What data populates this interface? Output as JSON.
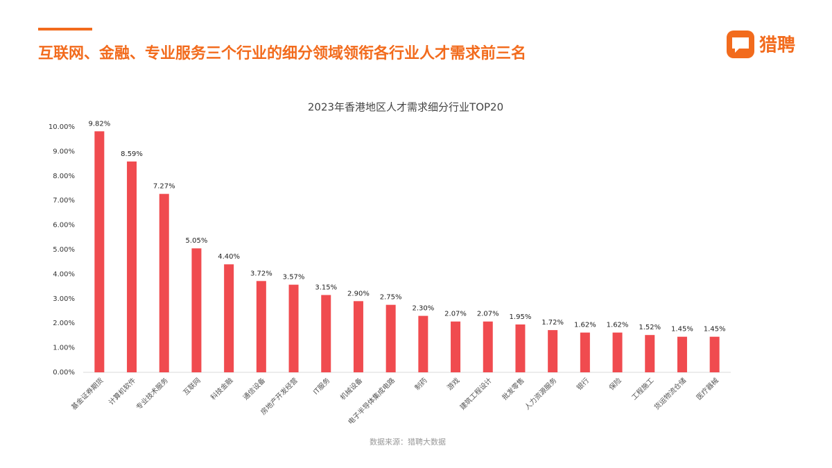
{
  "header": {
    "title": "互联网、金融、专业服务三个行业的细分领域领衔各行业人才需求前三名",
    "logo": "猎聘"
  },
  "chart_data": {
    "type": "bar",
    "title": "2023年香港地区人才需求细分行业TOP20",
    "categories": [
      "基金证券期货",
      "计算机软件",
      "专业技术服务",
      "互联网",
      "科技金融",
      "通信设备",
      "房地产开发经营",
      "IT服务",
      "机械设备",
      "电子半导体集成电路",
      "制药",
      "游戏",
      "建筑工程设计",
      "批发零售",
      "人力资源服务",
      "银行",
      "保险",
      "工程施工",
      "货运物流仓储",
      "医疗器械"
    ],
    "values": [
      9.82,
      8.59,
      7.27,
      5.05,
      4.4,
      3.72,
      3.57,
      3.15,
      2.9,
      2.75,
      2.3,
      2.07,
      2.07,
      1.95,
      1.72,
      1.62,
      1.62,
      1.52,
      1.45,
      1.45
    ],
    "value_labels": [
      "9.82%",
      "8.59%",
      "7.27%",
      "5.05%",
      "4.40%",
      "3.72%",
      "3.57%",
      "3.15%",
      "2.90%",
      "2.75%",
      "2.30%",
      "2.07%",
      "2.07%",
      "1.95%",
      "1.72%",
      "1.62%",
      "1.62%",
      "1.52%",
      "1.45%",
      "1.45%"
    ],
    "color": "#f04b4f",
    "ylim": [
      0,
      10
    ],
    "yticks": [
      {
        "value": 0,
        "label": "0.00%"
      },
      {
        "value": 1,
        "label": "1.00%"
      },
      {
        "value": 2,
        "label": "2.00%"
      },
      {
        "value": 3,
        "label": "3.00%"
      },
      {
        "value": 4,
        "label": "4.00%"
      },
      {
        "value": 5,
        "label": "5.00%"
      },
      {
        "value": 6,
        "label": "6.00%"
      },
      {
        "value": 7,
        "label": "7.00%"
      },
      {
        "value": 8,
        "label": "8.00%"
      },
      {
        "value": 9,
        "label": "9.00%"
      },
      {
        "value": 10,
        "label": "10.00%"
      }
    ],
    "grid": false,
    "source": "数据来源：猎聘大数据"
  }
}
